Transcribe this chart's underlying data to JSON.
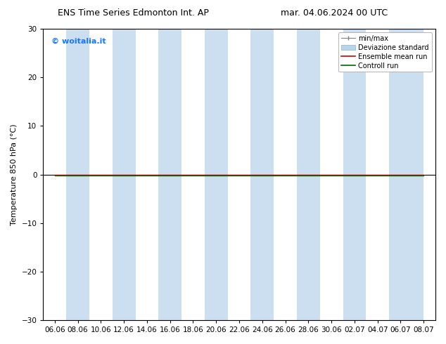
{
  "title_left": "ENS Time Series Edmonton Int. AP",
  "title_right": "mar. 04.06.2024 00 UTC",
  "ylabel": "Temperature 850 hPa (°C)",
  "ylim": [
    -30,
    30
  ],
  "yticks": [
    -30,
    -20,
    -10,
    0,
    10,
    20,
    30
  ],
  "xtick_labels": [
    "06.06",
    "08.06",
    "10.06",
    "12.06",
    "14.06",
    "16.06",
    "18.06",
    "20.06",
    "22.06",
    "24.06",
    "26.06",
    "28.06",
    "30.06",
    "02.07",
    "04.07",
    "06.07",
    "08.07"
  ],
  "watermark": "© woitalia.it",
  "watermark_color": "#1a75ff",
  "background_color": "#ffffff",
  "plot_bg_color": "#ffffff",
  "shaded_band_color": "#ccdff0",
  "ensemble_mean_color": "#cc0000",
  "control_run_color": "#006600",
  "zero_line_color": "#000000",
  "shaded_columns": [
    1,
    3,
    5,
    7,
    9,
    11,
    13,
    15,
    16
  ],
  "title_fontsize": 9,
  "axis_label_fontsize": 8,
  "tick_fontsize": 7.5,
  "legend_fontsize": 7
}
